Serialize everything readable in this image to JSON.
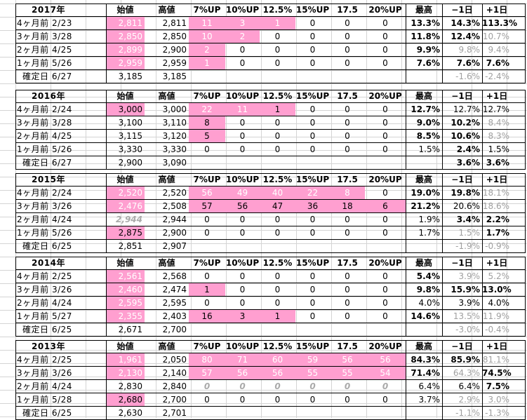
{
  "columns": [
    "始値",
    "高値",
    "7%UP",
    "10%UP",
    "12.5%",
    "15%UP",
    "17.5",
    "20%UP",
    "最高",
    "−1日",
    "+1日"
  ],
  "blocks": [
    {
      "year": "2017年",
      "rows": [
        {
          "label": "4ヶ月前 2/23",
          "values": [
            "2,811",
            "2,811",
            "11",
            "3",
            "1",
            "0",
            "0",
            "0",
            "13.3%",
            "14.3%",
            "113.3%"
          ]
        },
        {
          "label": "3ヶ月前 3/28",
          "values": [
            "2,850",
            "2,850",
            "10",
            "2",
            "0",
            "0",
            "0",
            "0",
            "11.8%",
            "12.4%",
            "10.7%"
          ]
        },
        {
          "label": "2ヶ月前 4/25",
          "values": [
            "2,899",
            "2,900",
            "2",
            "0",
            "0",
            "0",
            "0",
            "0",
            "9.9%",
            "9.8%",
            "9.4%"
          ]
        },
        {
          "label": "1ヶ月前 5/26",
          "values": [
            "2,959",
            "2,959",
            "1",
            "0",
            "0",
            "0",
            "0",
            "0",
            "7.6%",
            "7.6%",
            "7.6%"
          ]
        }
      ],
      "confirm": {
        "label": "確定日 6/27",
        "values": [
          "3,185",
          "3,185",
          "",
          "",
          "",
          "",
          "",
          "",
          "",
          "-1.6%",
          "-2.4%"
        ]
      }
    },
    {
      "year": "2016年",
      "rows": [
        {
          "label": "4ヶ月前 2/24",
          "values": [
            "3,000",
            "3,000",
            "22",
            "11",
            "1",
            "0",
            "0",
            "0",
            "12.7%",
            "12.7%",
            "12.7%"
          ]
        },
        {
          "label": "3ヶ月前 3/28",
          "values": [
            "3,100",
            "3,110",
            "8",
            "0",
            "0",
            "0",
            "0",
            "0",
            "9.0%",
            "10.2%",
            "8.4%"
          ]
        },
        {
          "label": "2ヶ月前 4/25",
          "values": [
            "3,115",
            "3,120",
            "5",
            "0",
            "0",
            "0",
            "0",
            "0",
            "8.5%",
            "10.6%",
            "8.3%"
          ]
        },
        {
          "label": "1ヶ月前 5/26",
          "values": [
            "3,330",
            "3,330",
            "0",
            "0",
            "0",
            "0",
            "0",
            "0",
            "1.5%",
            "2.4%",
            "1.5%"
          ]
        }
      ],
      "confirm": {
        "label": "確定日 6/27",
        "values": [
          "2,900",
          "3,090",
          "",
          "",
          "",
          "",
          "",
          "",
          "",
          "3.6%",
          "3.6%"
        ]
      }
    },
    {
      "year": "2015年",
      "rows": [
        {
          "label": "4ヶ月前 2/24",
          "values": [
            "2,520",
            "2,520",
            "56",
            "49",
            "40",
            "22",
            "8",
            "0",
            "19.0%",
            "19.8%",
            "18.1%"
          ]
        },
        {
          "label": "3ヶ月前 3/26",
          "values": [
            "2,476",
            "2,508",
            "57",
            "56",
            "47",
            "36",
            "18",
            "6",
            "21.2%",
            "20.6%",
            "18.6%"
          ]
        },
        {
          "label": "2ヶ月前 4/24",
          "values": [
            "2,944",
            "2,944",
            "0",
            "0",
            "0",
            "0",
            "0",
            "0",
            "1.9%",
            "3.4%",
            "2.2%"
          ]
        },
        {
          "label": "1ヶ月前 5/26",
          "values": [
            "2,875",
            "2,900",
            "0",
            "0",
            "0",
            "0",
            "0",
            "0",
            "1.7%",
            "1.5%",
            "1.7%"
          ]
        }
      ],
      "confirm": {
        "label": "確定日 6/25",
        "values": [
          "2,851",
          "2,907",
          "",
          "",
          "",
          "",
          "",
          "",
          "",
          "-1.9%",
          "-0.9%"
        ]
      }
    },
    {
      "year": "2014年",
      "rows": [
        {
          "label": "4ヶ月前 2/25",
          "values": [
            "2,561",
            "2,568",
            "0",
            "0",
            "0",
            "0",
            "0",
            "0",
            "5.4%",
            "3.9%",
            "5.2%"
          ]
        },
        {
          "label": "3ヶ月前 3/26",
          "values": [
            "2,460",
            "2,474",
            "1",
            "0",
            "0",
            "0",
            "0",
            "0",
            "9.8%",
            "15.9%",
            "13.0%"
          ]
        },
        {
          "label": "2ヶ月前 4/24",
          "values": [
            "2,595",
            "2,595",
            "0",
            "0",
            "0",
            "0",
            "0",
            "0",
            "4.0%",
            "3.9%",
            "4.0%"
          ]
        },
        {
          "label": "1ヶ月前 5/27",
          "values": [
            "2,355",
            "2,403",
            "16",
            "3",
            "1",
            "0",
            "0",
            "0",
            "14.6%",
            "13.5%",
            "11.9%"
          ]
        }
      ],
      "confirm": {
        "label": "確定日 6/25",
        "values": [
          "2,671",
          "2,700",
          "",
          "",
          "",
          "",
          "",
          "",
          "",
          "-3.0%",
          "-0.4%"
        ]
      }
    },
    {
      "year": "2013年",
      "rows": [
        {
          "label": "4ヶ月前 2/25",
          "values": [
            "1,961",
            "2,050",
            "80",
            "71",
            "60",
            "59",
            "56",
            "56",
            "84.3%",
            "85.9%",
            "81.1%"
          ]
        },
        {
          "label": "3ヶ月前 3/26",
          "values": [
            "2,130",
            "2,140",
            "57",
            "56",
            "56",
            "55",
            "55",
            "54",
            "71.4%",
            "64.3%",
            "74.5%"
          ]
        },
        {
          "label": "2ヶ月前 4/24",
          "values": [
            "2,830",
            "2,840",
            "0",
            "0",
            "0",
            "0",
            "0",
            "0",
            "6.4%",
            "6.4%",
            "7.5%"
          ]
        },
        {
          "label": "1ヶ月前 5/28",
          "values": [
            "2,680",
            "2,700",
            "0",
            "0",
            "0",
            "0",
            "0",
            "0",
            "3.7%",
            "2.9%",
            "3.0%"
          ]
        }
      ],
      "confirm": {
        "label": "確定日 6/25",
        "values": [
          "2,630",
          "2,701",
          "",
          "",
          "",
          "",
          "",
          "",
          "",
          "-1.1%",
          "-1.3%"
        ]
      }
    }
  ]
}
